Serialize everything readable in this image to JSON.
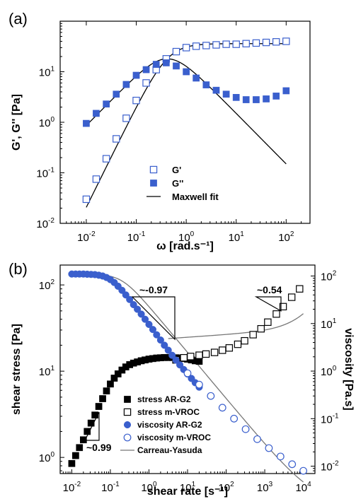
{
  "chart_data": [
    {
      "panel_label": "(a)",
      "type": "scatter",
      "xlabel": "ω [rad.s⁻¹]",
      "ylabel": "G', G'' [Pa]",
      "xscale": "log",
      "yscale": "log",
      "xlim": [
        0.003,
        300
      ],
      "ylim": [
        0.01,
        100
      ],
      "xticks": [
        {
          "value": 0.01,
          "base": "10",
          "exp": "-2"
        },
        {
          "value": 0.1,
          "base": "10",
          "exp": "-1"
        },
        {
          "value": 1,
          "base": "10",
          "exp": "0"
        },
        {
          "value": 10,
          "base": "10",
          "exp": "1"
        },
        {
          "value": 100,
          "base": "10",
          "exp": "2"
        }
      ],
      "yticks": [
        {
          "value": 0.01,
          "base": "10",
          "exp": "-2"
        },
        {
          "value": 0.1,
          "base": "10",
          "exp": "-1"
        },
        {
          "value": 1,
          "base": "10",
          "exp": "0"
        },
        {
          "value": 10,
          "base": "10",
          "exp": "1"
        }
      ],
      "legend_position": "bottom-center",
      "series": [
        {
          "name": "G'",
          "marker": "open-square",
          "color": "#3a5fcd",
          "x": [
            0.01,
            0.0158,
            0.0251,
            0.0398,
            0.0631,
            0.1,
            0.158,
            0.251,
            0.398,
            0.631,
            1,
            1.58,
            2.51,
            3.98,
            6.31,
            10,
            15.8,
            25.1,
            39.8,
            63.1,
            100
          ],
          "y": [
            0.03,
            0.075,
            0.19,
            0.47,
            1.2,
            2.7,
            6.0,
            11.0,
            18.0,
            25.0,
            30.0,
            32.0,
            33.0,
            34.0,
            35.0,
            35.0,
            36.0,
            37.0,
            38.0,
            39.0,
            40.0
          ]
        },
        {
          "name": "G''",
          "marker": "filled-square",
          "color": "#3a5fcd",
          "x": [
            0.01,
            0.0158,
            0.0251,
            0.0398,
            0.0631,
            0.1,
            0.158,
            0.251,
            0.398,
            0.631,
            1,
            1.58,
            2.51,
            3.98,
            6.31,
            10,
            15.8,
            25.1,
            39.8,
            63.1,
            100
          ],
          "y": [
            0.95,
            1.5,
            2.3,
            3.6,
            5.6,
            8.5,
            11.0,
            14.0,
            15.0,
            13.0,
            10.0,
            7.5,
            5.5,
            4.3,
            3.6,
            3.1,
            2.8,
            2.8,
            2.9,
            3.3,
            4.2
          ]
        },
        {
          "name": "Maxwell fit",
          "marker": "line",
          "color": "#000000",
          "model": "maxwell",
          "G0": 36,
          "lambda": 2.4
        }
      ]
    },
    {
      "panel_label": "(b)",
      "type": "scatter",
      "xlabel": "shear rate [s⁻¹]",
      "ylabel": "shear stress [Pa]",
      "ylabel_right": "viscosity [Pa.s]",
      "xscale": "log",
      "yscale": "log",
      "xlim": [
        0.005,
        20000
      ],
      "ylim": [
        0.65,
        170
      ],
      "ylim_right": [
        0.007,
        170
      ],
      "xticks": [
        {
          "value": 0.01,
          "base": "10",
          "exp": "-2"
        },
        {
          "value": 0.1,
          "base": "10",
          "exp": "-1"
        },
        {
          "value": 1,
          "base": "10",
          "exp": "0"
        },
        {
          "value": 10,
          "base": "10",
          "exp": "1"
        },
        {
          "value": 100,
          "base": "10",
          "exp": "2"
        },
        {
          "value": 1000,
          "base": "10",
          "exp": "3"
        },
        {
          "value": 10000,
          "base": "10",
          "exp": "4"
        }
      ],
      "yticks": [
        {
          "value": 1,
          "base": "10",
          "exp": "0"
        },
        {
          "value": 10,
          "base": "10",
          "exp": "1"
        },
        {
          "value": 100,
          "base": "10",
          "exp": "2"
        }
      ],
      "yticks_right": [
        {
          "value": 0.01,
          "base": "10",
          "exp": "-2"
        },
        {
          "value": 0.1,
          "base": "10",
          "exp": "-1"
        },
        {
          "value": 1,
          "base": "10",
          "exp": "0"
        },
        {
          "value": 10,
          "base": "10",
          "exp": "1"
        },
        {
          "value": 100,
          "base": "10",
          "exp": "2"
        }
      ],
      "legend_position": "bottom-right",
      "annotations": [
        {
          "text": "~-0.97",
          "x": 0.6,
          "y": 80
        },
        {
          "text": "~0.54",
          "x": 1500,
          "y": 80
        },
        {
          "text": "~0.99",
          "x": 0.02,
          "y": 1.1
        }
      ],
      "series": [
        {
          "name": "stress AR-G2",
          "marker": "filled-square",
          "color": "#000000",
          "axis": "left",
          "x": [
            0.01,
            0.0126,
            0.0158,
            0.02,
            0.0251,
            0.0316,
            0.0398,
            0.0501,
            0.0631,
            0.0794,
            0.1,
            0.126,
            0.158,
            0.2,
            0.251,
            0.316,
            0.398,
            0.501,
            0.631,
            0.794,
            1,
            1.26,
            1.58,
            2,
            2.51,
            3.16,
            3.98,
            5.01,
            6.31,
            7.94,
            10,
            12.6,
            15.8,
            20
          ],
          "y": [
            0.85,
            1.05,
            1.3,
            1.6,
            2.0,
            2.5,
            3.1,
            3.9,
            4.8,
            5.9,
            7.1,
            8.3,
            9.3,
            10.3,
            11.2,
            11.9,
            12.4,
            12.8,
            13.2,
            13.5,
            13.8,
            14.0,
            14.2,
            14.3,
            14.4,
            14.4,
            14.4,
            14.3,
            14.2,
            14.0,
            13.8,
            13.5,
            13.2,
            13.0
          ]
        },
        {
          "name": "stress m-VROC",
          "marker": "open-square",
          "color": "#000000",
          "axis": "left",
          "x": [
            5,
            8,
            12,
            20,
            30,
            50,
            80,
            120,
            200,
            300,
            500,
            800,
            1200,
            2000,
            3000,
            5000,
            8000
          ],
          "y": [
            13.5,
            14.3,
            14.8,
            15.3,
            15.8,
            16.5,
            17.5,
            18.6,
            20.5,
            22.5,
            26.5,
            31.0,
            37.0,
            46.0,
            56.0,
            72.0,
            90.0
          ]
        },
        {
          "name": "viscosity AR-G2",
          "marker": "filled-circle",
          "color": "#3a5fcd",
          "axis": "right",
          "x": [
            0.01,
            0.0126,
            0.0158,
            0.02,
            0.0251,
            0.0316,
            0.0398,
            0.0501,
            0.0631,
            0.0794,
            0.1,
            0.126,
            0.158,
            0.2,
            0.251,
            0.316,
            0.398,
            0.501,
            0.631,
            0.794,
            1,
            1.26,
            1.58,
            2,
            2.51,
            3.16,
            3.98,
            5.01,
            6.31,
            7.94,
            10,
            12.6,
            15.8,
            20
          ],
          "y": [
            110,
            110,
            110,
            110,
            109,
            108,
            107,
            104,
            100,
            93,
            84,
            73,
            61,
            50,
            40,
            32,
            25,
            20,
            15.8,
            12.3,
            9.6,
            7.5,
            5.8,
            4.5,
            3.5,
            2.75,
            2.15,
            1.7,
            1.35,
            1.08,
            0.87,
            0.7,
            0.57,
            0.46
          ]
        },
        {
          "name": "viscosity m-VROC",
          "marker": "open-circle",
          "color": "#3a5fcd",
          "axis": "right",
          "x": [
            10,
            20,
            40,
            80,
            160,
            320,
            640,
            1280,
            2560,
            5120,
            10000
          ],
          "y": [
            0.9,
            0.52,
            0.3,
            0.17,
            0.1,
            0.06,
            0.037,
            0.024,
            0.016,
            0.011,
            0.008
          ]
        },
        {
          "name": "Carreau-Yasuda",
          "marker": "line",
          "color": "#777777",
          "model": "carreau-yasuda",
          "eta0": 110,
          "eta_inf": 0.0016,
          "lambda": 5,
          "a": 2,
          "n": 0.03
        }
      ]
    }
  ]
}
